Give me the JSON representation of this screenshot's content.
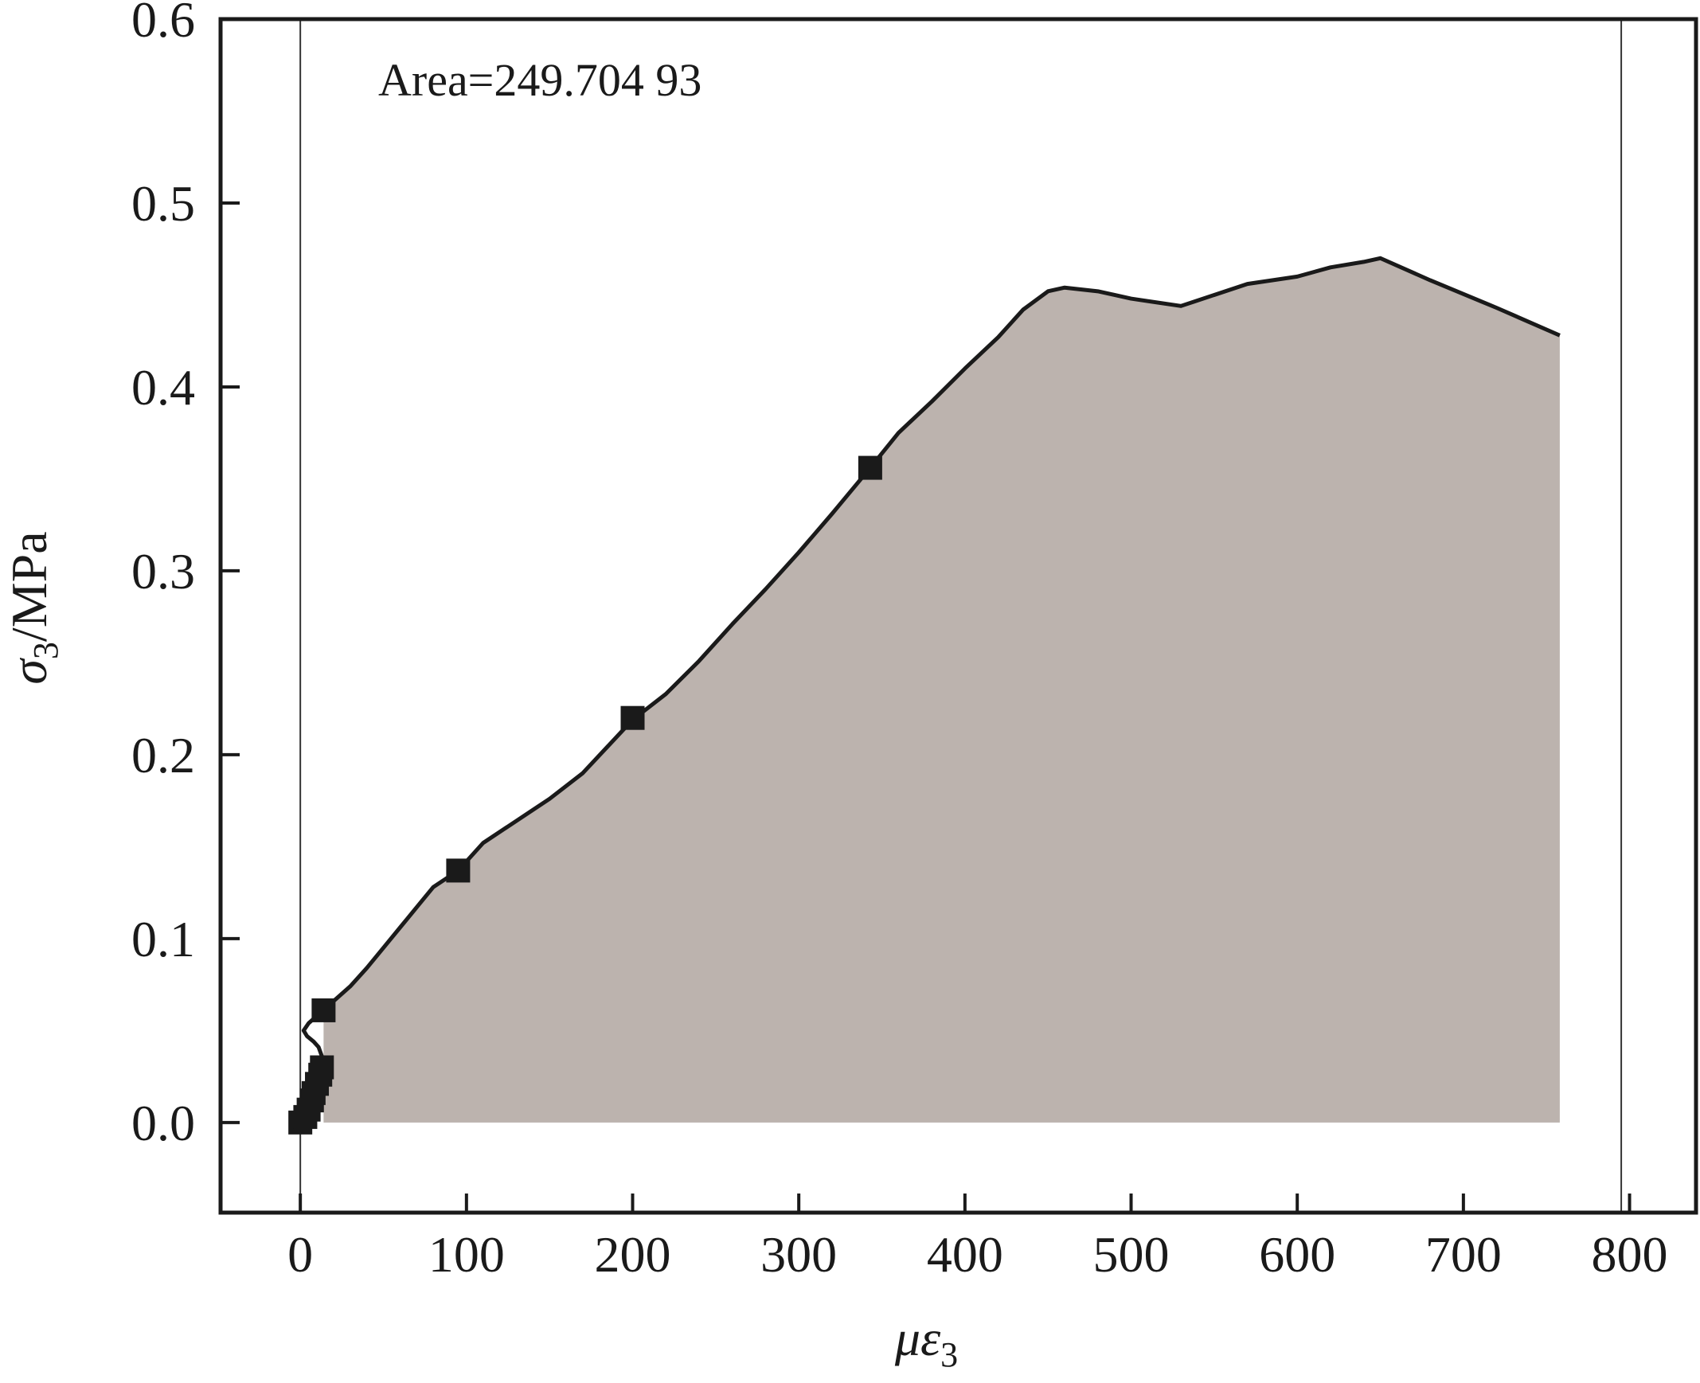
{
  "chart_data": {
    "type": "area",
    "annotation": "Area=249.704 93",
    "xlabel": {
      "main": "με",
      "sub": "3"
    },
    "ylabel": {
      "main": "σ",
      "sub": "3",
      "unit": "/MPa"
    },
    "xlim": [
      -48,
      840
    ],
    "ylim": [
      -0.049,
      0.6
    ],
    "xticks": [
      0,
      100,
      200,
      300,
      400,
      500,
      600,
      700,
      800
    ],
    "xtick_labels": [
      "0",
      "100",
      "200",
      "300",
      "400",
      "500",
      "600",
      "700",
      "800"
    ],
    "yticks": [
      0.0,
      0.1,
      0.2,
      0.3,
      0.4,
      0.5,
      0.6
    ],
    "ytick_labels": [
      "0.0",
      "0.1",
      "0.2",
      "0.3",
      "0.4",
      "0.5",
      "0.6"
    ],
    "vlines": [
      0,
      795
    ],
    "grid": false,
    "fill_color": "#bcb3ae",
    "line_color": "#1a1a1a",
    "series": [
      {
        "x": [
          0,
          3,
          5,
          7,
          9,
          10,
          11,
          12,
          13,
          11,
          8,
          4,
          2,
          5,
          10,
          14,
          20,
          30,
          40,
          50,
          60,
          70,
          80,
          90,
          95,
          110,
          130,
          150,
          170,
          200,
          220,
          240,
          260,
          280,
          300,
          320,
          343,
          360,
          380,
          400,
          420,
          435,
          450,
          460,
          480,
          500,
          530,
          550,
          570,
          600,
          620,
          640,
          650,
          680,
          720,
          758
        ],
        "y": [
          0.0,
          0.003,
          0.008,
          0.014,
          0.02,
          0.025,
          0.03,
          0.034,
          0.036,
          0.041,
          0.044,
          0.047,
          0.05,
          0.054,
          0.058,
          0.061,
          0.066,
          0.074,
          0.084,
          0.095,
          0.106,
          0.117,
          0.128,
          0.134,
          0.137,
          0.152,
          0.164,
          0.176,
          0.19,
          0.219,
          0.233,
          0.251,
          0.271,
          0.29,
          0.31,
          0.331,
          0.356,
          0.375,
          0.392,
          0.41,
          0.427,
          0.442,
          0.452,
          0.454,
          0.452,
          0.448,
          0.444,
          0.45,
          0.456,
          0.46,
          0.465,
          0.468,
          0.47,
          0.458,
          0.443,
          0.428
        ]
      }
    ],
    "markers": {
      "x": [
        0,
        3,
        5,
        7,
        8,
        10,
        12,
        13,
        14,
        95,
        200,
        343
      ],
      "y": [
        0.0,
        0.003,
        0.007,
        0.012,
        0.016,
        0.021,
        0.026,
        0.03,
        0.061,
        0.137,
        0.22,
        0.356
      ]
    }
  }
}
